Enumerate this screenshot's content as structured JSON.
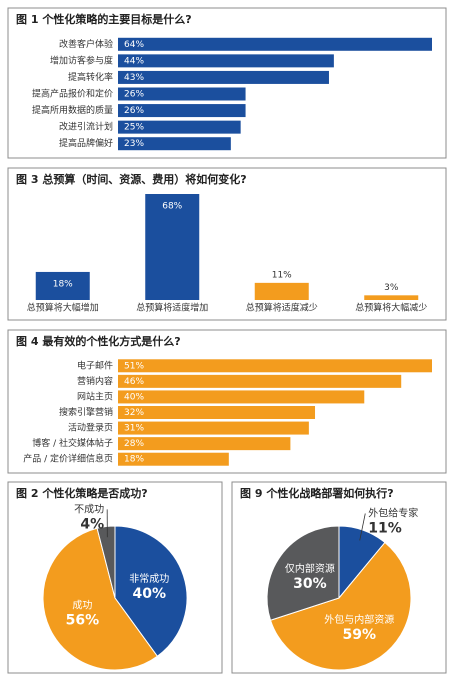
{
  "chart_data": [
    {
      "type": "bar",
      "orientation": "horizontal",
      "title": "图 1 个性化策略的主要目标是什么?",
      "color": "#1b4f9e",
      "categories": [
        "改善客户体验",
        "增加访客参与度",
        "提高转化率",
        "提高产品报价和定价",
        "提高所用数据的质量",
        "改进引流计划",
        "提高品牌偏好"
      ],
      "values": [
        64,
        44,
        43,
        26,
        26,
        25,
        23
      ],
      "value_labels": [
        "64%",
        "44%",
        "43%",
        "26%",
        "26%",
        "25%",
        "23%"
      ]
    },
    {
      "type": "bar",
      "orientation": "vertical",
      "title": "图 3 总预算（时间、资源、费用）将如何变化?",
      "colors": [
        "#1b4f9e",
        "#1b4f9e",
        "#f39c1e",
        "#f39c1e"
      ],
      "categories": [
        "总预算将大幅增加",
        "总预算将适度增加",
        "总预算将适度减少",
        "总预算将大幅减少"
      ],
      "values": [
        18,
        68,
        11,
        3
      ],
      "value_labels": [
        "18%",
        "68%",
        "11%",
        "3%"
      ]
    },
    {
      "type": "bar",
      "orientation": "horizontal",
      "title": "图 4 最有效的个性化方式是什么?",
      "color": "#f39c1e",
      "categories": [
        "电子邮件",
        "营销内容",
        "网站主页",
        "搜索引擎营销",
        "活动登录页",
        "博客 / 社交媒体帖子",
        "产品 / 定价详细信息页"
      ],
      "values": [
        51,
        46,
        40,
        32,
        31,
        28,
        18
      ],
      "value_labels": [
        "51%",
        "46%",
        "40%",
        "32%",
        "31%",
        "28%",
        "18%"
      ]
    },
    {
      "type": "pie",
      "title": "图 2 个性化策略是否成功?",
      "categories": [
        "非常成功",
        "成功",
        "不成功"
      ],
      "values": [
        40,
        56,
        4
      ],
      "value_labels": [
        "40%",
        "56%",
        "4%"
      ],
      "colors": [
        "#1b4f9e",
        "#f39c1e",
        "#58595b"
      ]
    },
    {
      "type": "pie",
      "title": "图 9 个性化战略部署如何执行?",
      "categories": [
        "外包给专家",
        "外包与内部资源",
        "仅内部资源"
      ],
      "values": [
        11,
        59,
        30
      ],
      "value_labels": [
        "11%",
        "59%",
        "30%"
      ],
      "colors": [
        "#1b4f9e",
        "#f39c1e",
        "#58595b"
      ]
    }
  ]
}
